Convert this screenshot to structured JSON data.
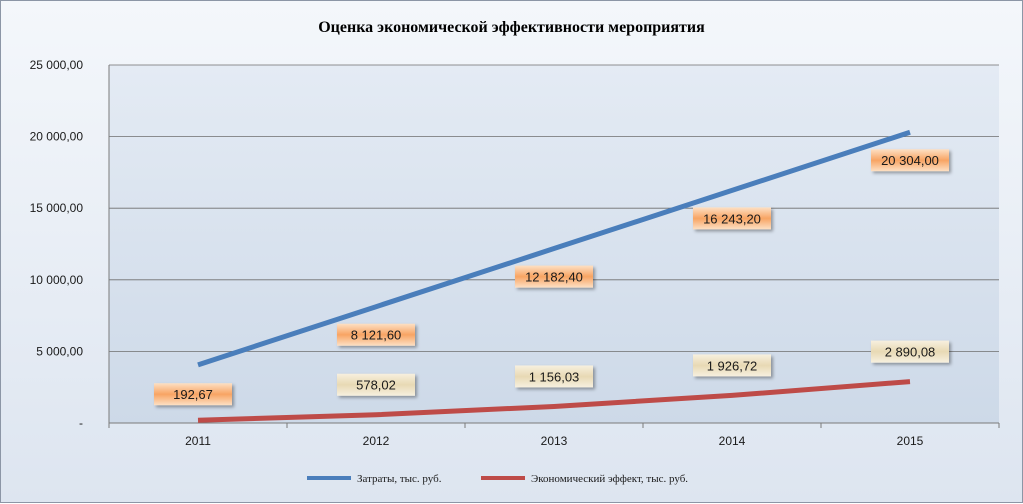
{
  "chart_data": {
    "type": "line",
    "title": "Оценка экономической эффективности мероприятия",
    "categories": [
      "2011",
      "2012",
      "2013",
      "2014",
      "2015"
    ],
    "ylim": [
      0,
      25000
    ],
    "yticks": [
      0,
      5000,
      10000,
      15000,
      20000,
      25000
    ],
    "ytick_labels": [
      "-",
      "5 000,00",
      "10 000,00",
      "15 000,00",
      "20 000,00",
      "25 000,00"
    ],
    "grid": true,
    "legend_position": "bottom",
    "series": [
      {
        "name": "Затраты, тыс. руб.",
        "color": "#4a7ebb",
        "values": [
          4060.8,
          8121.6,
          12182.4,
          16243.2,
          20304.0
        ],
        "labels": [
          "",
          "8 121,60",
          "12 182,40",
          "16 243,20",
          "20 304,00"
        ]
      },
      {
        "name": "Экономический эффект, тыс. руб.",
        "color": "#be4b48",
        "values": [
          192.67,
          578.02,
          1156.03,
          1926.72,
          2890.08
        ],
        "labels": [
          "192,67",
          "578,02",
          "1 156,03",
          "1 926,72",
          "2 890,08"
        ]
      }
    ]
  }
}
